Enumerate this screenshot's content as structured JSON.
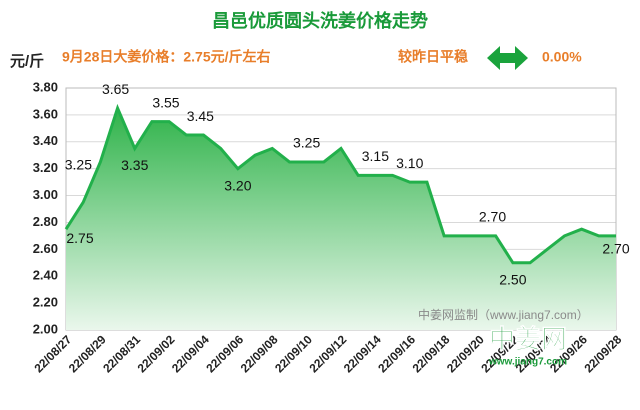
{
  "chart_data": {
    "type": "area",
    "title": "昌邑优质圆头洗姜价格走势",
    "ylabel": "元/斤",
    "price_note": "9月28日大姜价格：2.75元/斤左右",
    "change_text": "较昨日平稳",
    "change_value": "0.00%",
    "watermark": "中姜网监制（www.jiang7.com）",
    "logo": "中姜网",
    "logo_url": "www.jiang7.com",
    "color": "#22b04b",
    "categories": [
      "22/08/27",
      null,
      "22/08/29",
      null,
      "22/08/31",
      null,
      "22/09/02",
      null,
      "22/09/04",
      null,
      "22/09/06",
      null,
      "22/09/08",
      null,
      "22/09/10",
      null,
      "22/09/12",
      null,
      "22/09/14",
      null,
      "22/09/16",
      null,
      "22/09/18",
      null,
      "22/09/20",
      null,
      "22/09/22",
      null,
      "22/09/24",
      null,
      "22/09/26",
      null,
      "22/09/28"
    ],
    "values": [
      2.75,
      2.95,
      3.25,
      3.65,
      3.35,
      3.55,
      3.55,
      3.45,
      3.45,
      3.35,
      3.2,
      3.3,
      3.35,
      3.25,
      3.25,
      3.25,
      3.35,
      3.15,
      3.15,
      3.15,
      3.1,
      3.1,
      2.7,
      2.7,
      2.7,
      2.7,
      2.5,
      2.5,
      2.6,
      2.7,
      2.75,
      2.7,
      2.7
    ],
    "value_labels": [
      "2.75",
      null,
      "3.25",
      "3.65",
      "3.35",
      "3.55",
      null,
      "3.45",
      null,
      null,
      "3.20",
      null,
      null,
      null,
      "3.25",
      null,
      null,
      null,
      "3.15",
      null,
      "3.10",
      null,
      null,
      null,
      "2.70",
      null,
      "2.50",
      null,
      null,
      null,
      null,
      null,
      "2.70"
    ],
    "ylim": [
      2.0,
      3.8
    ],
    "yticks": [
      {
        "value": 2.0,
        "label": "2.00"
      },
      {
        "value": 2.2,
        "label": "2.20"
      },
      {
        "value": 2.4,
        "label": "2.40"
      },
      {
        "value": 2.6,
        "label": "2.60"
      },
      {
        "value": 2.8,
        "label": "2.80"
      },
      {
        "value": 3.0,
        "label": "3.00"
      },
      {
        "value": 3.2,
        "label": "3.20"
      },
      {
        "value": 3.4,
        "label": "3.40"
      },
      {
        "value": 3.6,
        "label": "3.60"
      },
      {
        "value": 3.8,
        "label": "3.80"
      }
    ],
    "grid": true
  }
}
